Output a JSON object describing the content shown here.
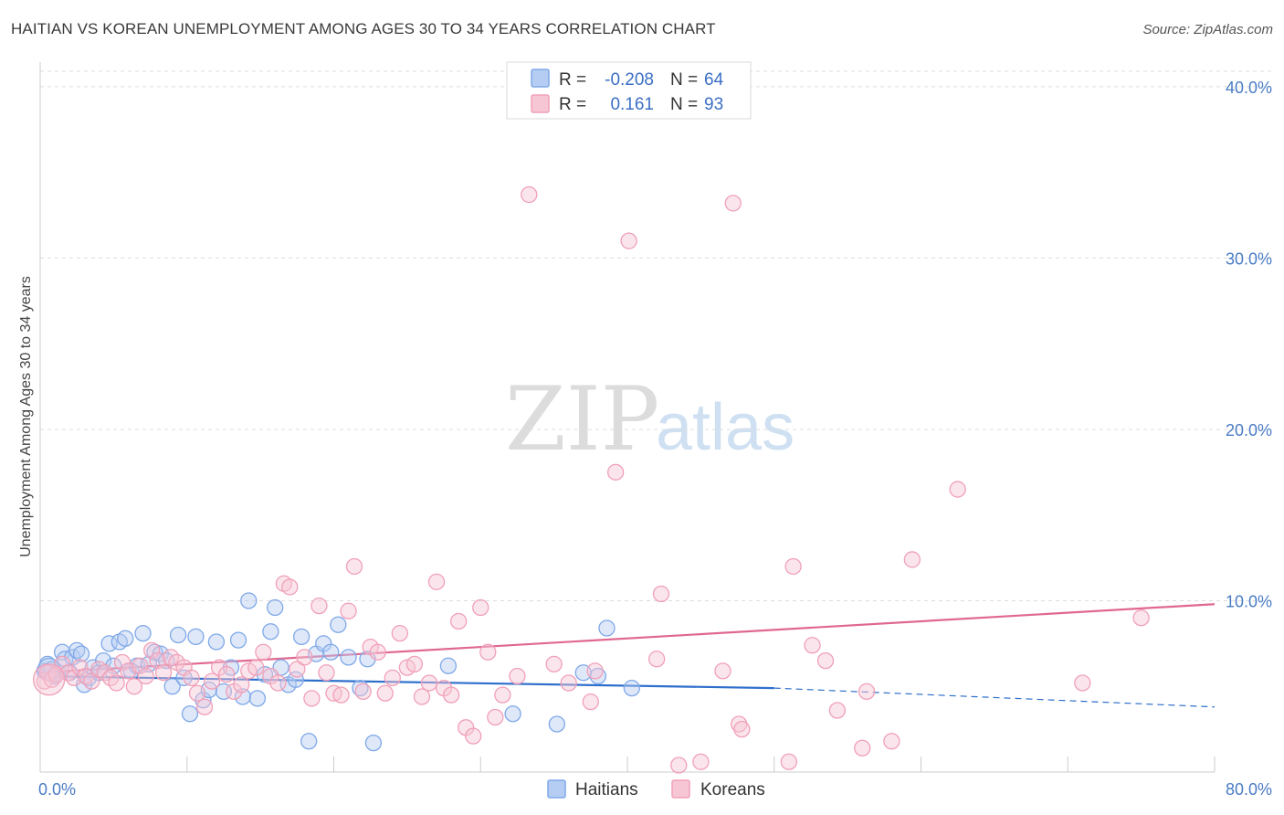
{
  "title": "HAITIAN VS KOREAN UNEMPLOYMENT AMONG AGES 30 TO 34 YEARS CORRELATION CHART",
  "source": "Source: ZipAtlas.com",
  "watermark": {
    "part1": "ZIP",
    "part2": "atlas"
  },
  "chart_data": {
    "type": "scatter",
    "title": "HAITIAN VS KOREAN UNEMPLOYMENT AMONG AGES 30 TO 34 YEARS CORRELATION CHART",
    "xlabel": "",
    "ylabel": "Unemployment Among Ages 30 to 34 years",
    "xlim": [
      0,
      80
    ],
    "ylim": [
      0,
      40
    ],
    "x_tick_labels": [
      {
        "value": 0,
        "label": "0.0%"
      },
      {
        "value": 80,
        "label": "80.0%"
      }
    ],
    "y_tick_labels": [
      {
        "value": 10,
        "label": "10.0%"
      },
      {
        "value": 20,
        "label": "20.0%"
      },
      {
        "value": 30,
        "label": "30.0%"
      },
      {
        "value": 40,
        "label": "40.0%"
      }
    ],
    "grid": "horizontal dashed",
    "legend_position": "top-center",
    "series": [
      {
        "name": "Haitians",
        "color": "#7fa8e8",
        "fill": "#b5cdf2",
        "line_color": "#2f6fcc",
        "r_label": "R =",
        "r_value": "-0.208",
        "n_label": "N =",
        "n_value": "64",
        "trend": {
          "x0": 0,
          "y0": 5.6,
          "x1": 50,
          "y1": 4.9,
          "x_dash_end": 80,
          "y_dash_end": 3.8
        },
        "points": [
          [
            0.3,
            5.9
          ],
          [
            0.5,
            6.3
          ],
          [
            0.8,
            6.0
          ],
          [
            1.0,
            5.6
          ],
          [
            1.2,
            5.8
          ],
          [
            1.5,
            7.0
          ],
          [
            1.7,
            6.6
          ],
          [
            2.0,
            5.8
          ],
          [
            2.2,
            6.7
          ],
          [
            2.5,
            7.1
          ],
          [
            2.8,
            6.9
          ],
          [
            3.0,
            5.1
          ],
          [
            3.3,
            5.5
          ],
          [
            3.6,
            6.1
          ],
          [
            4.0,
            5.8
          ],
          [
            4.3,
            6.5
          ],
          [
            4.7,
            7.5
          ],
          [
            5.0,
            6.2
          ],
          [
            5.4,
            7.6
          ],
          [
            5.8,
            7.8
          ],
          [
            6.2,
            5.9
          ],
          [
            6.6,
            6.2
          ],
          [
            7.0,
            8.1
          ],
          [
            7.4,
            6.3
          ],
          [
            7.8,
            7.0
          ],
          [
            8.2,
            6.9
          ],
          [
            8.6,
            6.5
          ],
          [
            9.0,
            5.0
          ],
          [
            9.4,
            8.0
          ],
          [
            9.8,
            5.5
          ],
          [
            10.2,
            3.4
          ],
          [
            10.6,
            7.9
          ],
          [
            11.1,
            4.2
          ],
          [
            11.5,
            4.8
          ],
          [
            12.0,
            7.6
          ],
          [
            12.5,
            4.7
          ],
          [
            13.0,
            6.1
          ],
          [
            13.5,
            7.7
          ],
          [
            13.8,
            4.4
          ],
          [
            14.2,
            10.0
          ],
          [
            14.8,
            4.3
          ],
          [
            15.3,
            5.7
          ],
          [
            15.7,
            8.2
          ],
          [
            16.0,
            9.6
          ],
          [
            16.4,
            6.1
          ],
          [
            16.9,
            5.1
          ],
          [
            17.4,
            5.4
          ],
          [
            17.8,
            7.9
          ],
          [
            18.3,
            1.8
          ],
          [
            18.8,
            6.9
          ],
          [
            19.3,
            7.5
          ],
          [
            19.8,
            7.0
          ],
          [
            20.3,
            8.6
          ],
          [
            21.0,
            6.7
          ],
          [
            21.8,
            4.9
          ],
          [
            22.3,
            6.6
          ],
          [
            22.7,
            1.7
          ],
          [
            27.8,
            6.2
          ],
          [
            32.2,
            3.4
          ],
          [
            35.2,
            2.8
          ],
          [
            37.0,
            5.8
          ],
          [
            38.0,
            5.6
          ],
          [
            38.6,
            8.4
          ],
          [
            40.3,
            4.9
          ]
        ]
      },
      {
        "name": "Koreans",
        "color": "#f0a0b8",
        "fill": "#f7c6d4",
        "line_color": "#e06890",
        "r_label": "R =",
        "r_value": "0.161",
        "n_label": "N =",
        "n_value": "93",
        "trend": {
          "x0": 0,
          "y0": 5.8,
          "x1": 80,
          "y1": 9.8
        },
        "points": [
          [
            0.3,
            5.3
          ],
          [
            0.5,
            5.8
          ],
          [
            0.8,
            5.4
          ],
          [
            1.1,
            5.7
          ],
          [
            1.5,
            6.3
          ],
          [
            1.9,
            5.8
          ],
          [
            2.3,
            5.5
          ],
          [
            2.7,
            6.1
          ],
          [
            3.1,
            5.6
          ],
          [
            3.5,
            5.3
          ],
          [
            4.0,
            6.0
          ],
          [
            4.4,
            5.8
          ],
          [
            4.8,
            5.5
          ],
          [
            5.2,
            5.2
          ],
          [
            5.6,
            6.4
          ],
          [
            6.0,
            5.9
          ],
          [
            6.4,
            5.0
          ],
          [
            6.8,
            6.2
          ],
          [
            7.2,
            5.6
          ],
          [
            7.6,
            7.1
          ],
          [
            8.0,
            6.5
          ],
          [
            8.4,
            5.8
          ],
          [
            8.9,
            6.7
          ],
          [
            9.3,
            6.4
          ],
          [
            9.8,
            6.1
          ],
          [
            10.3,
            5.5
          ],
          [
            10.7,
            4.6
          ],
          [
            11.2,
            3.8
          ],
          [
            11.7,
            5.3
          ],
          [
            12.2,
            6.1
          ],
          [
            12.7,
            5.7
          ],
          [
            13.2,
            4.7
          ],
          [
            13.7,
            5.1
          ],
          [
            14.2,
            5.9
          ],
          [
            14.7,
            6.1
          ],
          [
            15.2,
            7.0
          ],
          [
            15.7,
            5.6
          ],
          [
            16.2,
            5.2
          ],
          [
            16.6,
            11.0
          ],
          [
            17.0,
            10.8
          ],
          [
            17.5,
            6.0
          ],
          [
            18.0,
            6.7
          ],
          [
            18.5,
            4.3
          ],
          [
            19.0,
            9.7
          ],
          [
            19.5,
            5.8
          ],
          [
            20.0,
            4.6
          ],
          [
            20.5,
            4.5
          ],
          [
            21.0,
            9.4
          ],
          [
            21.4,
            12.0
          ],
          [
            22.0,
            4.7
          ],
          [
            22.5,
            7.3
          ],
          [
            23.0,
            7.0
          ],
          [
            23.5,
            4.6
          ],
          [
            24.0,
            5.5
          ],
          [
            24.5,
            8.1
          ],
          [
            25.0,
            6.1
          ],
          [
            25.5,
            6.3
          ],
          [
            26.0,
            4.4
          ],
          [
            26.5,
            5.2
          ],
          [
            27.0,
            11.1
          ],
          [
            27.5,
            4.9
          ],
          [
            28.0,
            4.5
          ],
          [
            28.5,
            8.8
          ],
          [
            29.0,
            2.6
          ],
          [
            29.5,
            2.1
          ],
          [
            30.0,
            9.6
          ],
          [
            30.5,
            7.0
          ],
          [
            31.0,
            3.2
          ],
          [
            31.5,
            4.5
          ],
          [
            32.5,
            5.6
          ],
          [
            33.3,
            33.7
          ],
          [
            35.0,
            6.3
          ],
          [
            36.0,
            5.2
          ],
          [
            37.5,
            4.1
          ],
          [
            37.8,
            5.9
          ],
          [
            39.2,
            17.5
          ],
          [
            40.1,
            31.0
          ],
          [
            42.0,
            6.6
          ],
          [
            42.3,
            10.4
          ],
          [
            43.5,
            0.4
          ],
          [
            45.0,
            0.6
          ],
          [
            46.5,
            5.9
          ],
          [
            47.2,
            33.2
          ],
          [
            47.6,
            2.8
          ],
          [
            47.8,
            2.5
          ],
          [
            51.0,
            0.6
          ],
          [
            51.3,
            12.0
          ],
          [
            52.6,
            7.4
          ],
          [
            53.5,
            6.5
          ],
          [
            54.3,
            3.6
          ],
          [
            56.0,
            1.4
          ],
          [
            56.3,
            4.7
          ],
          [
            58.0,
            1.8
          ]
        ],
        "extra_points": [
          [
            59.4,
            12.4
          ],
          [
            62.5,
            16.5
          ],
          [
            71.0,
            5.2
          ],
          [
            75.0,
            9.0
          ]
        ]
      }
    ]
  },
  "legend": {
    "items": [
      {
        "name": "Haitians"
      },
      {
        "name": "Koreans"
      }
    ]
  }
}
